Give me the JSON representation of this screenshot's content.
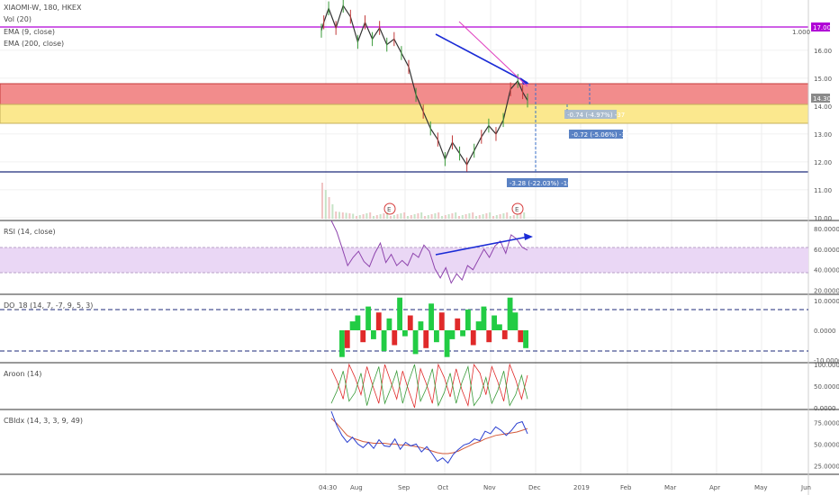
{
  "chart_data": {
    "type": "line",
    "symbol_title": "XIAOMI-W, 180, HKEX",
    "indicator_legends": {
      "vol": "Vol (20)",
      "ema9": "EMA (9, close)",
      "ema200": "EMA (200, close)",
      "rsi": "RSI (14, close)",
      "dmi": "DO_18 (14, 7, -7, 9, 5, 3)",
      "aroon": "Aroon (14)",
      "cbi": "CBIdx (14, 3, 3, 9, 49)"
    },
    "x_tick_labels": [
      "04:30",
      "Aug",
      "Sep",
      "Oct",
      "Nov",
      "Dec",
      "2019",
      "Feb",
      "Mar",
      "Apr",
      "May",
      "Jun"
    ],
    "price_axis": {
      "ticks": [
        "16.00",
        "15.00",
        "14.00",
        "13.00",
        "12.00",
        "11.00",
        "10.00"
      ],
      "ylim": [
        9.9,
        17.8
      ]
    },
    "price_tags": {
      "current": "14.30",
      "upper_line": "17.00",
      "ratio": "1.000"
    },
    "rsi_axis": {
      "ticks": [
        "80.0000",
        "60.0000",
        "40.0000",
        "20.0000"
      ],
      "band": [
        40,
        70
      ]
    },
    "dmi_axis": {
      "ticks": [
        "10.0000",
        "0.0000",
        "-10.0000"
      ]
    },
    "aroon_axis": {
      "ticks": [
        "100.0000",
        "50.0000",
        "0.0000"
      ]
    },
    "cbi_axis": {
      "ticks": [
        "75.0000",
        "50.0000",
        "25.0000"
      ]
    },
    "measurement_labels": [
      "-0.74 (-4.97%) -37",
      "-0.72 (-5.06%) -36",
      "-3.28 (-22.03%) -164"
    ],
    "event_markers": [
      "E",
      "E"
    ],
    "zones": [
      {
        "name": "red-zone",
        "from": 14.3,
        "to": 14.95,
        "color": "#f28c8c"
      },
      {
        "name": "yellow-zone",
        "from": 13.5,
        "to": 14.3,
        "color": "#fbe88e"
      }
    ],
    "horizontal_lines": [
      {
        "value": 17.0,
        "color": "#b000d6"
      },
      {
        "value": 11.6,
        "color": "#1c2a7a"
      }
    ],
    "series": [
      {
        "name": "EMA (9, close)",
        "color": "#333333"
      },
      {
        "name": "EMA (200, close)",
        "color": "#e040c0"
      },
      {
        "name": "RSI (14, close)",
        "color": "#8e44ad"
      },
      {
        "name": "CBIdx (14, 3, 3, 9, 49)",
        "color": "#2a3fd0"
      }
    ],
    "price_path": [
      [
        0,
        16.7
      ],
      [
        1,
        17.0
      ],
      [
        3,
        17.5
      ],
      [
        6,
        16.8
      ],
      [
        9,
        17.6
      ],
      [
        12,
        17.2
      ],
      [
        15,
        16.3
      ],
      [
        18,
        17.0
      ],
      [
        21,
        16.4
      ],
      [
        24,
        16.8
      ],
      [
        27,
        16.2
      ],
      [
        30,
        16.4
      ],
      [
        33,
        15.9
      ],
      [
        36,
        15.4
      ],
      [
        39,
        14.4
      ],
      [
        42,
        13.8
      ],
      [
        45,
        13.2
      ],
      [
        48,
        12.8
      ],
      [
        51,
        12.1
      ],
      [
        54,
        12.7
      ],
      [
        57,
        12.3
      ],
      [
        60,
        11.9
      ],
      [
        63,
        12.4
      ],
      [
        66,
        12.9
      ],
      [
        69,
        13.3
      ],
      [
        72,
        13.0
      ],
      [
        75,
        13.5
      ],
      [
        78,
        14.6
      ],
      [
        81,
        14.9
      ],
      [
        83,
        14.5
      ],
      [
        85,
        14.2
      ]
    ],
    "rsi_values": [
      88,
      77,
      61,
      44,
      52,
      58,
      48,
      43,
      56,
      66,
      47,
      55,
      44,
      49,
      44,
      56,
      52,
      64,
      58,
      41,
      32,
      42,
      27,
      36,
      30,
      44,
      40,
      50,
      60,
      52,
      63,
      68,
      56,
      74,
      70,
      62,
      59
    ],
    "dmi_values": [
      -9,
      -6,
      3,
      5,
      -4,
      8,
      -3,
      6,
      -7,
      4,
      -5,
      11,
      -2,
      5,
      -8,
      3,
      -6,
      9,
      -4,
      6,
      -9,
      -3,
      4,
      -2,
      7,
      -5,
      3,
      8,
      -4,
      5,
      2,
      -3,
      11,
      6,
      -4,
      -6
    ],
    "aroon_up": [
      90,
      60,
      20,
      100,
      70,
      30,
      95,
      50,
      10,
      100,
      60,
      20,
      85,
      40,
      0,
      90,
      55,
      10,
      100,
      70,
      25,
      90,
      40,
      5,
      100,
      80,
      30,
      95,
      60,
      15,
      100,
      65,
      20,
      75
    ],
    "aroon_down": [
      10,
      40,
      85,
      15,
      35,
      80,
      5,
      55,
      95,
      10,
      45,
      85,
      10,
      60,
      100,
      15,
      45,
      90,
      5,
      35,
      80,
      10,
      60,
      95,
      5,
      25,
      70,
      10,
      40,
      85,
      5,
      30,
      75,
      20
    ],
    "cbi_values": [
      88,
      72,
      60,
      52,
      58,
      50,
      46,
      52,
      45,
      55,
      48,
      47,
      56,
      44,
      52,
      48,
      50,
      41,
      47,
      39,
      30,
      34,
      28,
      38,
      44,
      49,
      51,
      56,
      54,
      65,
      62,
      70,
      66,
      60,
      66,
      74,
      76,
      62
    ],
    "cbi_fast_values": [
      80,
      74,
      67,
      60,
      57,
      55,
      53,
      52,
      51,
      51,
      51,
      50,
      50,
      49,
      49,
      48,
      47,
      46,
      44,
      42,
      40,
      39,
      39,
      40,
      42,
      45,
      48,
      51,
      53,
      56,
      58,
      60,
      61,
      62,
      63,
      64,
      66,
      68
    ]
  }
}
